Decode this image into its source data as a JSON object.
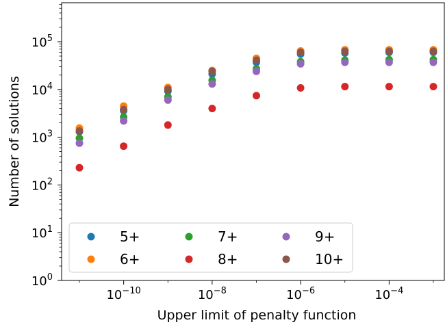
{
  "chart_data": {
    "type": "scatter",
    "xlabel": "Upper limit of penalty function",
    "ylabel": "Number of solutions",
    "x_scale": "log",
    "y_scale": "log",
    "xlim": [
      1e-11,
      0.001
    ],
    "ylim": [
      1,
      700000
    ],
    "grid": false,
    "legend_position": "lower-left",
    "x_ticks": [
      {
        "value": 1e-10,
        "base": "10",
        "exp": "−10"
      },
      {
        "value": 1e-08,
        "base": "10",
        "exp": "−8"
      },
      {
        "value": 1e-06,
        "base": "10",
        "exp": "−6"
      },
      {
        "value": 0.0001,
        "base": "10",
        "exp": "−4"
      }
    ],
    "y_ticks": [
      {
        "value": 1,
        "base": "10",
        "exp": "0"
      },
      {
        "value": 10,
        "base": "10",
        "exp": "1"
      },
      {
        "value": 100,
        "base": "10",
        "exp": "2"
      },
      {
        "value": 1000,
        "base": "10",
        "exp": "3"
      },
      {
        "value": 10000,
        "base": "10",
        "exp": "4"
      },
      {
        "value": 100000,
        "base": "10",
        "exp": "5"
      }
    ],
    "x": [
      1e-11,
      1e-10,
      1e-09,
      1e-08,
      1e-07,
      1e-06,
      1e-05,
      0.0001,
      0.001
    ],
    "series": [
      {
        "name": "5+",
        "color": "#1f77b4",
        "values": [
          1300,
          3600,
          9200,
          21000,
          37000,
          55000,
          58000,
          60000,
          60000
        ]
      },
      {
        "name": "6+",
        "color": "#ff7f0e",
        "values": [
          1550,
          4500,
          11000,
          25000,
          45000,
          64000,
          68000,
          68000,
          68000
        ]
      },
      {
        "name": "7+",
        "color": "#2ca02c",
        "values": [
          950,
          2650,
          7000,
          15500,
          27000,
          38000,
          41000,
          42000,
          42000
        ]
      },
      {
        "name": "8+",
        "color": "#d62728",
        "values": [
          230,
          650,
          1800,
          4000,
          7400,
          10800,
          11500,
          11500,
          11500
        ]
      },
      {
        "name": "9+",
        "color": "#9467bd",
        "values": [
          750,
          2200,
          6000,
          13000,
          24000,
          34500,
          37000,
          37000,
          37000
        ]
      },
      {
        "name": "10+",
        "color": "#8c564b",
        "values": [
          1350,
          3800,
          10000,
          24000,
          41000,
          60000,
          63000,
          63000,
          63000
        ]
      }
    ]
  }
}
